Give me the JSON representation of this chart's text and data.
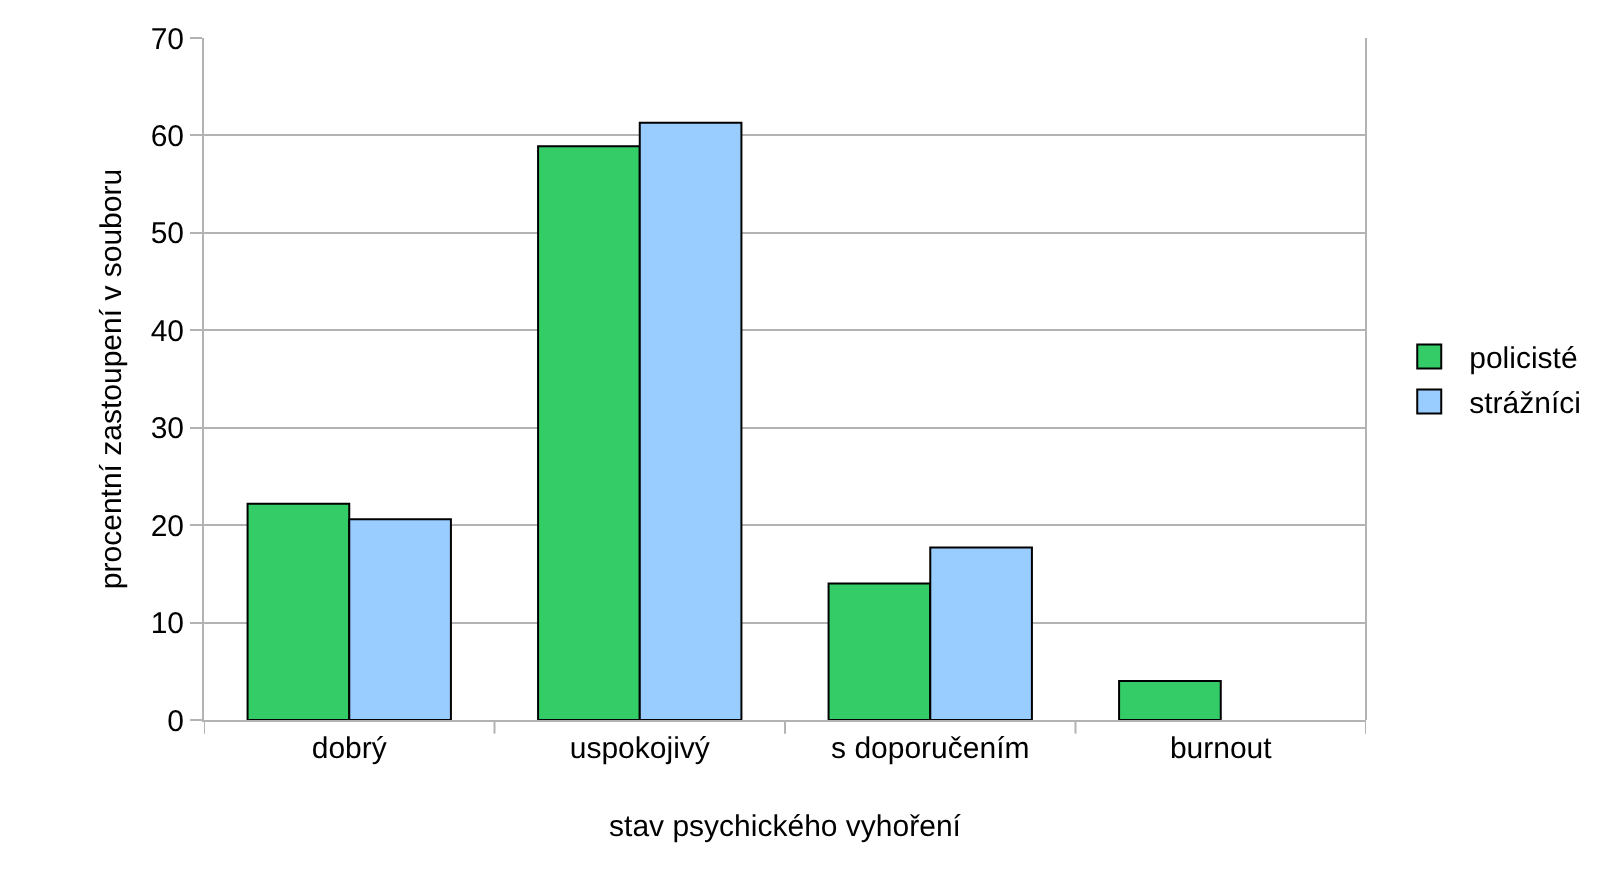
{
  "chart_data": {
    "type": "bar",
    "xlabel": "stav psychického vyhoření",
    "ylabel": "procentní zastoupení v souboru",
    "categories": [
      "dobrý",
      "uspokojivý",
      "s doporučením",
      "burnout"
    ],
    "series": [
      {
        "name": "policisté",
        "color": "#33cc66",
        "values": [
          22.2,
          58.9,
          14.0,
          4.0
        ]
      },
      {
        "name": "strážníci",
        "color": "#99ccff",
        "values": [
          20.6,
          61.3,
          17.7,
          null
        ]
      }
    ],
    "ylim": [
      0,
      70
    ],
    "yticks": [
      0,
      10,
      20,
      30,
      40,
      50,
      60,
      70
    ],
    "grid": "y",
    "legend": "right"
  }
}
